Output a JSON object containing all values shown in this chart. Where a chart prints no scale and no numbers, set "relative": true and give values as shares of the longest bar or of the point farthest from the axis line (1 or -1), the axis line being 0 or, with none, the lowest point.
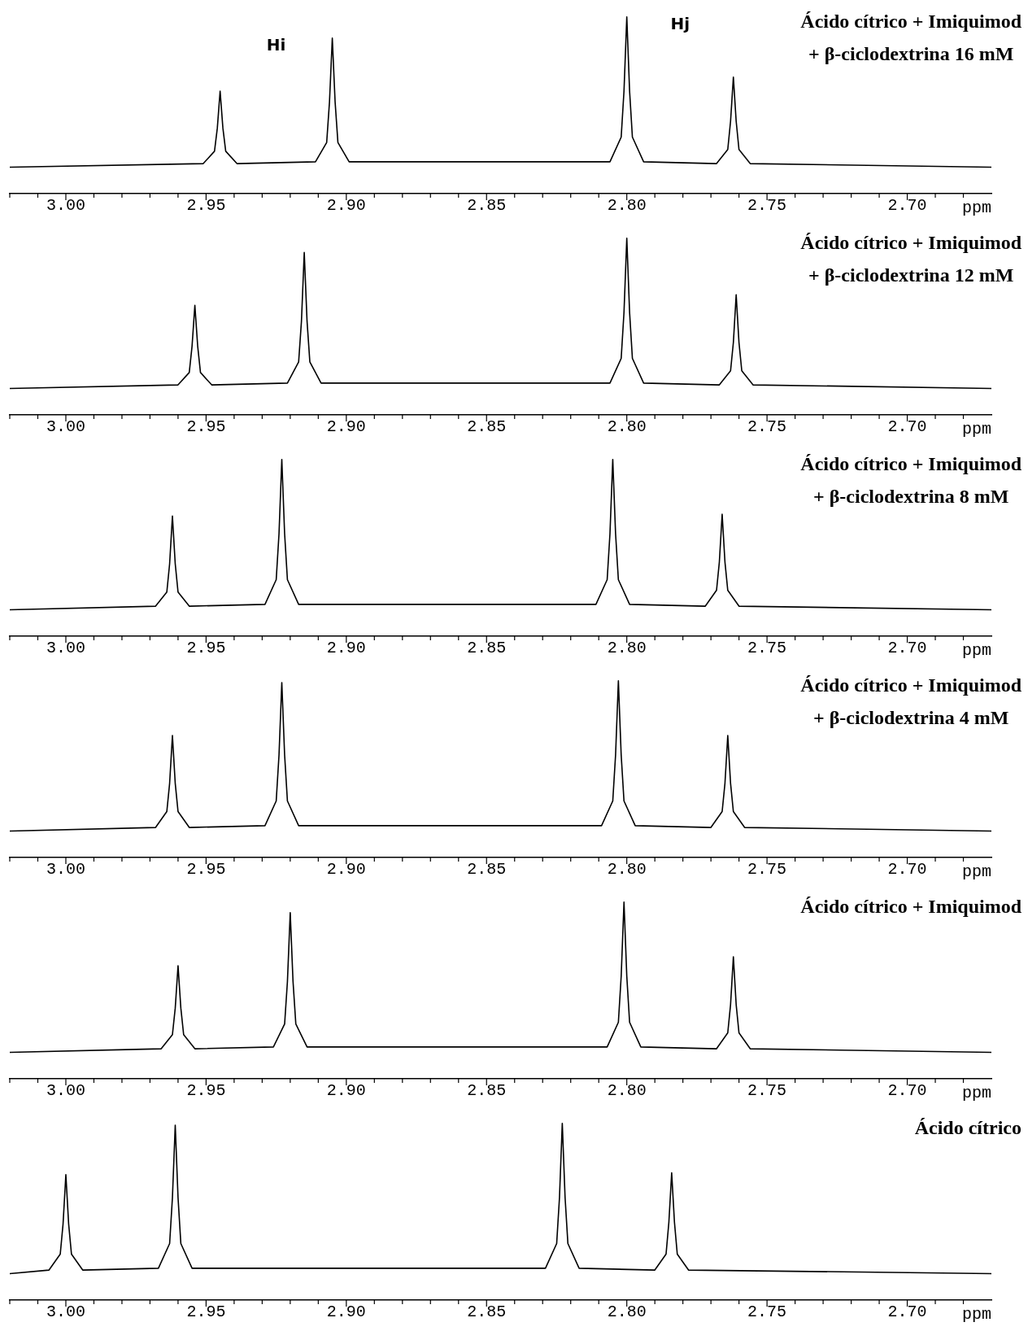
{
  "chart_data": [
    {
      "type": "line",
      "relative": true,
      "title": "Ácido cítrico + Imiquimod",
      "subtitle": "+ β-ciclodextrina 16 mM",
      "xlabel": "ppm",
      "annotations": [
        "Hi",
        "Hj"
      ],
      "xlim": [
        3.02,
        2.67
      ],
      "xticks": [
        {
          "value": 3.02,
          "label": null
        },
        {
          "value": 3.01,
          "label": null
        },
        {
          "value": 3,
          "label": "3.00"
        },
        {
          "value": 2.99,
          "label": null
        },
        {
          "value": 2.98,
          "label": null
        },
        {
          "value": 2.97,
          "label": null
        },
        {
          "value": 2.96,
          "label": null
        },
        2.95,
        {
          "value": 2.94,
          "label": null
        },
        {
          "value": 2.93,
          "label": null
        },
        {
          "value": 2.92,
          "label": null
        },
        {
          "value": 2.91,
          "label": null
        },
        {
          "value": 2.9,
          "label": "2.90"
        },
        {
          "value": 2.89,
          "label": null
        },
        {
          "value": 2.88,
          "label": null
        },
        {
          "value": 2.87,
          "label": null
        },
        {
          "value": 2.86,
          "label": null
        },
        2.85,
        {
          "value": 2.84,
          "label": null
        },
        {
          "value": 2.83,
          "label": null
        },
        {
          "value": 2.82,
          "label": null
        },
        {
          "value": 2.81,
          "label": null
        },
        {
          "value": 2.8,
          "label": "2.80"
        },
        {
          "value": 2.79,
          "label": null
        },
        {
          "value": 2.78,
          "label": null
        },
        {
          "value": 2.77,
          "label": null
        },
        {
          "value": 2.76,
          "label": null
        },
        2.75,
        {
          "value": 2.74,
          "label": null
        },
        {
          "value": 2.73,
          "label": null
        },
        {
          "value": 2.72,
          "label": null
        },
        {
          "value": 2.71,
          "label": null
        },
        {
          "value": 2.7,
          "label": "2.70"
        },
        {
          "value": 2.69,
          "label": null
        },
        {
          "value": 2.68,
          "label": null
        }
      ],
      "series": [
        {
          "color": "#000000",
          "x": [
            3.02,
            2.951,
            2.947,
            2.946,
            2.945,
            2.944,
            2.943,
            2.939,
            2.911,
            2.907,
            2.906,
            2.905,
            2.904,
            2.903,
            2.899,
            2.806,
            2.802,
            2.801,
            2.8,
            2.799,
            2.798,
            2.794,
            2.768,
            2.764,
            2.763,
            2.762,
            2.761,
            2.76,
            2.756,
            2.67
          ],
          "values": [
            0.15,
            0.17,
            0.24,
            0.37,
            0.58,
            0.37,
            0.24,
            0.17,
            0.18,
            0.29,
            0.52,
            0.88,
            0.52,
            0.29,
            0.18,
            0.18,
            0.32,
            0.58,
            1,
            0.58,
            0.32,
            0.18,
            0.17,
            0.25,
            0.41,
            0.66,
            0.41,
            0.25,
            0.17,
            0.15
          ]
        }
      ]
    },
    {
      "type": "line",
      "relative": true,
      "title": "Ácido cítrico + Imiquimod",
      "subtitle": "+ β-ciclodextrina 12 mM",
      "xlabel": "ppm",
      "xlim": [
        3.02,
        2.67
      ],
      "xticks": [
        {
          "value": 3.02,
          "label": null
        },
        {
          "value": 3.01,
          "label": null
        },
        {
          "value": 3,
          "label": "3.00"
        },
        {
          "value": 2.99,
          "label": null
        },
        {
          "value": 2.98,
          "label": null
        },
        {
          "value": 2.97,
          "label": null
        },
        {
          "value": 2.96,
          "label": null
        },
        2.95,
        {
          "value": 2.94,
          "label": null
        },
        {
          "value": 2.93,
          "label": null
        },
        {
          "value": 2.92,
          "label": null
        },
        {
          "value": 2.91,
          "label": null
        },
        {
          "value": 2.9,
          "label": "2.90"
        },
        {
          "value": 2.89,
          "label": null
        },
        {
          "value": 2.88,
          "label": null
        },
        {
          "value": 2.87,
          "label": null
        },
        {
          "value": 2.86,
          "label": null
        },
        2.85,
        {
          "value": 2.84,
          "label": null
        },
        {
          "value": 2.83,
          "label": null
        },
        {
          "value": 2.82,
          "label": null
        },
        {
          "value": 2.81,
          "label": null
        },
        {
          "value": 2.8,
          "label": "2.80"
        },
        {
          "value": 2.79,
          "label": null
        },
        {
          "value": 2.78,
          "label": null
        },
        {
          "value": 2.77,
          "label": null
        },
        {
          "value": 2.76,
          "label": null
        },
        2.75,
        {
          "value": 2.74,
          "label": null
        },
        {
          "value": 2.73,
          "label": null
        },
        {
          "value": 2.72,
          "label": null
        },
        {
          "value": 2.71,
          "label": null
        },
        {
          "value": 2.7,
          "label": "2.70"
        },
        {
          "value": 2.69,
          "label": null
        },
        {
          "value": 2.68,
          "label": null
        }
      ],
      "series": [
        {
          "color": "#000000",
          "x": [
            3.02,
            2.96,
            2.956,
            2.955,
            2.954,
            2.953,
            2.952,
            2.948,
            2.921,
            2.917,
            2.916,
            2.915,
            2.914,
            2.913,
            2.909,
            2.806,
            2.802,
            2.801,
            2.8,
            2.799,
            2.798,
            2.794,
            2.767,
            2.763,
            2.762,
            2.761,
            2.76,
            2.759,
            2.755,
            2.67
          ],
          "values": [
            0.15,
            0.17,
            0.24,
            0.39,
            0.62,
            0.39,
            0.24,
            0.17,
            0.18,
            0.3,
            0.53,
            0.92,
            0.53,
            0.3,
            0.18,
            0.18,
            0.32,
            0.58,
            1,
            0.58,
            0.32,
            0.18,
            0.17,
            0.25,
            0.41,
            0.68,
            0.41,
            0.25,
            0.17,
            0.15
          ]
        }
      ]
    },
    {
      "type": "line",
      "relative": true,
      "title": "Ácido cítrico + Imiquimod",
      "subtitle": "+ β-ciclodextrina 8 mM",
      "xlabel": "ppm",
      "xlim": [
        3.02,
        2.67
      ],
      "xticks": [
        {
          "value": 3.02,
          "label": null
        },
        {
          "value": 3.01,
          "label": null
        },
        {
          "value": 3,
          "label": "3.00"
        },
        {
          "value": 2.99,
          "label": null
        },
        {
          "value": 2.98,
          "label": null
        },
        {
          "value": 2.97,
          "label": null
        },
        {
          "value": 2.96,
          "label": null
        },
        2.95,
        {
          "value": 2.94,
          "label": null
        },
        {
          "value": 2.93,
          "label": null
        },
        {
          "value": 2.92,
          "label": null
        },
        {
          "value": 2.91,
          "label": null
        },
        {
          "value": 2.9,
          "label": "2.90"
        },
        {
          "value": 2.89,
          "label": null
        },
        {
          "value": 2.88,
          "label": null
        },
        {
          "value": 2.87,
          "label": null
        },
        {
          "value": 2.86,
          "label": null
        },
        2.85,
        {
          "value": 2.84,
          "label": null
        },
        {
          "value": 2.83,
          "label": null
        },
        {
          "value": 2.82,
          "label": null
        },
        {
          "value": 2.81,
          "label": null
        },
        {
          "value": 2.8,
          "label": "2.80"
        },
        {
          "value": 2.79,
          "label": null
        },
        {
          "value": 2.78,
          "label": null
        },
        {
          "value": 2.77,
          "label": null
        },
        {
          "value": 2.76,
          "label": null
        },
        2.75,
        {
          "value": 2.74,
          "label": null
        },
        {
          "value": 2.73,
          "label": null
        },
        {
          "value": 2.72,
          "label": null
        },
        {
          "value": 2.71,
          "label": null
        },
        {
          "value": 2.7,
          "label": "2.70"
        },
        {
          "value": 2.69,
          "label": null
        },
        {
          "value": 2.68,
          "label": null
        }
      ],
      "series": [
        {
          "color": "#000000",
          "x": [
            3.02,
            2.968,
            2.964,
            2.963,
            2.962,
            2.961,
            2.96,
            2.956,
            2.929,
            2.925,
            2.924,
            2.923,
            2.922,
            2.921,
            2.917,
            2.811,
            2.807,
            2.806,
            2.805,
            2.804,
            2.803,
            2.799,
            2.772,
            2.768,
            2.767,
            2.766,
            2.765,
            2.764,
            2.76,
            2.67
          ],
          "values": [
            0.15,
            0.17,
            0.25,
            0.41,
            0.68,
            0.41,
            0.25,
            0.17,
            0.18,
            0.32,
            0.58,
            1,
            0.58,
            0.32,
            0.18,
            0.18,
            0.32,
            0.58,
            1,
            0.58,
            0.32,
            0.18,
            0.17,
            0.26,
            0.42,
            0.69,
            0.42,
            0.26,
            0.17,
            0.15
          ]
        }
      ]
    },
    {
      "type": "line",
      "relative": true,
      "title": "Ácido cítrico + Imiquimod",
      "subtitle": "+ β-ciclodextrina 4 mM",
      "xlabel": "ppm",
      "xlim": [
        3.02,
        2.67
      ],
      "xticks": [
        {
          "value": 3.02,
          "label": null
        },
        {
          "value": 3.01,
          "label": null
        },
        {
          "value": 3,
          "label": "3.00"
        },
        {
          "value": 2.99,
          "label": null
        },
        {
          "value": 2.98,
          "label": null
        },
        {
          "value": 2.97,
          "label": null
        },
        {
          "value": 2.96,
          "label": null
        },
        2.95,
        {
          "value": 2.94,
          "label": null
        },
        {
          "value": 2.93,
          "label": null
        },
        {
          "value": 2.92,
          "label": null
        },
        {
          "value": 2.91,
          "label": null
        },
        {
          "value": 2.9,
          "label": "2.90"
        },
        {
          "value": 2.89,
          "label": null
        },
        {
          "value": 2.88,
          "label": null
        },
        {
          "value": 2.87,
          "label": null
        },
        {
          "value": 2.86,
          "label": null
        },
        2.85,
        {
          "value": 2.84,
          "label": null
        },
        {
          "value": 2.83,
          "label": null
        },
        {
          "value": 2.82,
          "label": null
        },
        {
          "value": 2.81,
          "label": null
        },
        {
          "value": 2.8,
          "label": "2.80"
        },
        {
          "value": 2.79,
          "label": null
        },
        {
          "value": 2.78,
          "label": null
        },
        {
          "value": 2.77,
          "label": null
        },
        {
          "value": 2.76,
          "label": null
        },
        2.75,
        {
          "value": 2.74,
          "label": null
        },
        {
          "value": 2.73,
          "label": null
        },
        {
          "value": 2.72,
          "label": null
        },
        {
          "value": 2.71,
          "label": null
        },
        {
          "value": 2.7,
          "label": "2.70"
        },
        {
          "value": 2.69,
          "label": null
        },
        {
          "value": 2.68,
          "label": null
        }
      ],
      "series": [
        {
          "color": "#000000",
          "x": [
            3.02,
            2.968,
            2.964,
            2.963,
            2.962,
            2.961,
            2.96,
            2.956,
            2.929,
            2.925,
            2.924,
            2.923,
            2.922,
            2.921,
            2.917,
            2.809,
            2.805,
            2.804,
            2.803,
            2.802,
            2.801,
            2.797,
            2.77,
            2.766,
            2.765,
            2.764,
            2.763,
            2.762,
            2.758,
            2.67
          ],
          "values": [
            0.15,
            0.17,
            0.26,
            0.42,
            0.69,
            0.42,
            0.26,
            0.17,
            0.18,
            0.32,
            0.58,
            0.99,
            0.58,
            0.32,
            0.18,
            0.18,
            0.32,
            0.58,
            1,
            0.58,
            0.32,
            0.18,
            0.17,
            0.26,
            0.42,
            0.69,
            0.42,
            0.26,
            0.17,
            0.15
          ]
        }
      ]
    },
    {
      "type": "line",
      "relative": true,
      "title": "Ácido cítrico + Imiquimod",
      "xlabel": "ppm",
      "xlim": [
        3.02,
        2.67
      ],
      "xticks": [
        {
          "value": 3.02,
          "label": null
        },
        {
          "value": 3.01,
          "label": null
        },
        {
          "value": 3,
          "label": "3.00"
        },
        {
          "value": 2.99,
          "label": null
        },
        {
          "value": 2.98,
          "label": null
        },
        {
          "value": 2.97,
          "label": null
        },
        {
          "value": 2.96,
          "label": null
        },
        2.95,
        {
          "value": 2.94,
          "label": null
        },
        {
          "value": 2.93,
          "label": null
        },
        {
          "value": 2.92,
          "label": null
        },
        {
          "value": 2.91,
          "label": null
        },
        {
          "value": 2.9,
          "label": "2.90"
        },
        {
          "value": 2.89,
          "label": null
        },
        {
          "value": 2.88,
          "label": null
        },
        {
          "value": 2.87,
          "label": null
        },
        {
          "value": 2.86,
          "label": null
        },
        2.85,
        {
          "value": 2.84,
          "label": null
        },
        {
          "value": 2.83,
          "label": null
        },
        {
          "value": 2.82,
          "label": null
        },
        {
          "value": 2.81,
          "label": null
        },
        {
          "value": 2.8,
          "label": "2.80"
        },
        {
          "value": 2.79,
          "label": null
        },
        {
          "value": 2.78,
          "label": null
        },
        {
          "value": 2.77,
          "label": null
        },
        {
          "value": 2.76,
          "label": null
        },
        2.75,
        {
          "value": 2.74,
          "label": null
        },
        {
          "value": 2.73,
          "label": null
        },
        {
          "value": 2.72,
          "label": null
        },
        {
          "value": 2.71,
          "label": null
        },
        {
          "value": 2.7,
          "label": "2.70"
        },
        {
          "value": 2.69,
          "label": null
        },
        {
          "value": 2.68,
          "label": null
        }
      ],
      "series": [
        {
          "color": "#000000",
          "x": [
            3.02,
            2.966,
            2.962,
            2.961,
            2.96,
            2.959,
            2.958,
            2.954,
            2.926,
            2.922,
            2.921,
            2.92,
            2.919,
            2.918,
            2.914,
            2.807,
            2.803,
            2.802,
            2.801,
            2.8,
            2.799,
            2.795,
            2.768,
            2.764,
            2.763,
            2.762,
            2.761,
            2.76,
            2.756,
            2.67
          ],
          "values": [
            0.15,
            0.17,
            0.25,
            0.4,
            0.64,
            0.4,
            0.25,
            0.17,
            0.18,
            0.31,
            0.55,
            0.94,
            0.55,
            0.31,
            0.18,
            0.18,
            0.32,
            0.58,
            1,
            0.58,
            0.32,
            0.18,
            0.17,
            0.26,
            0.42,
            0.69,
            0.42,
            0.26,
            0.17,
            0.15
          ]
        }
      ]
    },
    {
      "type": "line",
      "relative": true,
      "title": "Ácido cítrico",
      "xlabel": "ppm",
      "xlim": [
        3.02,
        2.67
      ],
      "xticks": [
        {
          "value": 3.02,
          "label": null
        },
        {
          "value": 3.01,
          "label": null
        },
        {
          "value": 3,
          "label": "3.00"
        },
        {
          "value": 2.99,
          "label": null
        },
        {
          "value": 2.98,
          "label": null
        },
        {
          "value": 2.97,
          "label": null
        },
        {
          "value": 2.96,
          "label": null
        },
        2.95,
        {
          "value": 2.94,
          "label": null
        },
        {
          "value": 2.93,
          "label": null
        },
        {
          "value": 2.92,
          "label": null
        },
        {
          "value": 2.91,
          "label": null
        },
        {
          "value": 2.9,
          "label": "2.90"
        },
        {
          "value": 2.89,
          "label": null
        },
        {
          "value": 2.88,
          "label": null
        },
        {
          "value": 2.87,
          "label": null
        },
        {
          "value": 2.86,
          "label": null
        },
        2.85,
        {
          "value": 2.84,
          "label": null
        },
        {
          "value": 2.83,
          "label": null
        },
        {
          "value": 2.82,
          "label": null
        },
        {
          "value": 2.81,
          "label": null
        },
        {
          "value": 2.8,
          "label": "2.80"
        },
        {
          "value": 2.79,
          "label": null
        },
        {
          "value": 2.78,
          "label": null
        },
        {
          "value": 2.77,
          "label": null
        },
        {
          "value": 2.76,
          "label": null
        },
        2.75,
        {
          "value": 2.74,
          "label": null
        },
        {
          "value": 2.73,
          "label": null
        },
        {
          "value": 2.72,
          "label": null
        },
        {
          "value": 2.71,
          "label": null
        },
        {
          "value": 2.7,
          "label": "2.70"
        },
        {
          "value": 2.69,
          "label": null
        },
        {
          "value": 2.68,
          "label": null
        }
      ],
      "series": [
        {
          "color": "#000000",
          "x": [
            3.02,
            3.006,
            3.002,
            3.001,
            3.0,
            2.999,
            2.998,
            2.994,
            2.967,
            2.963,
            2.962,
            2.961,
            2.96,
            2.959,
            2.955,
            2.829,
            2.825,
            2.824,
            2.823,
            2.822,
            2.821,
            2.817,
            2.79,
            2.786,
            2.785,
            2.784,
            2.783,
            2.782,
            2.778,
            2.67
          ],
          "values": [
            0.15,
            0.17,
            0.26,
            0.43,
            0.71,
            0.43,
            0.26,
            0.17,
            0.18,
            0.32,
            0.58,
            0.99,
            0.58,
            0.32,
            0.18,
            0.18,
            0.32,
            0.58,
            1,
            0.58,
            0.32,
            0.18,
            0.17,
            0.26,
            0.44,
            0.72,
            0.44,
            0.26,
            0.17,
            0.15
          ]
        }
      ]
    }
  ]
}
